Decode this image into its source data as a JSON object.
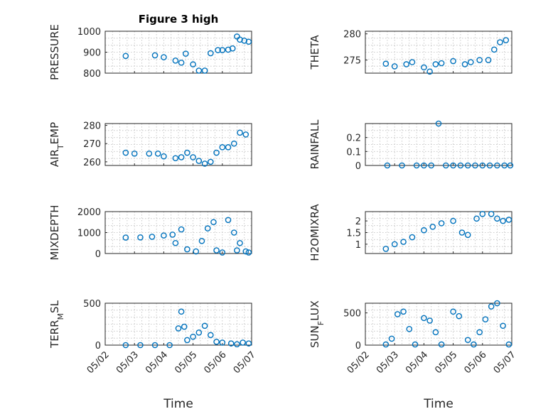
{
  "title": "Figure 3 high",
  "x_tick_labels": [
    "05/02",
    "05/03",
    "05/04",
    "05/05",
    "05/06",
    "05/07"
  ],
  "x_label": "Time",
  "chart_data": [
    {
      "type": "scatter",
      "ylabel": "PRESSURE",
      "title": "Figure 3 high",
      "xlim": [
        0,
        5
      ],
      "ylim": [
        800,
        1000
      ],
      "yticks": [
        800,
        900,
        1000
      ],
      "grid": true,
      "color": "#0072bd",
      "x": [
        0.7,
        1.7,
        2.0,
        2.4,
        2.6,
        2.75,
        3.0,
        3.2,
        3.4,
        3.6,
        3.85,
        4.0,
        4.2,
        4.35,
        4.5,
        4.6,
        4.75,
        4.9
      ],
      "y": [
        882,
        885,
        876,
        860,
        850,
        893,
        842,
        812,
        812,
        895,
        910,
        910,
        912,
        918,
        975,
        960,
        955,
        950
      ]
    },
    {
      "type": "scatter",
      "ylabel": "THETA",
      "xlim": [
        0,
        5
      ],
      "ylim": [
        272.5,
        280.5
      ],
      "yticks": [
        275,
        280
      ],
      "grid": true,
      "color": "#0072bd",
      "x": [
        0.7,
        1.0,
        1.4,
        1.6,
        2.0,
        2.2,
        2.4,
        2.6,
        3.0,
        3.4,
        3.6,
        3.9,
        4.2,
        4.4,
        4.6,
        4.8
      ],
      "y": [
        274.3,
        273.8,
        274.2,
        274.6,
        273.6,
        272.8,
        274.2,
        274.4,
        274.8,
        274.2,
        274.6,
        275.0,
        275.0,
        277.0,
        278.4,
        278.8
      ]
    },
    {
      "type": "scatter",
      "ylabel": "AIR_TEMP",
      "xlim": [
        0,
        5
      ],
      "ylim": [
        258,
        281
      ],
      "yticks": [
        260,
        270,
        280
      ],
      "grid": true,
      "color": "#0072bd",
      "x": [
        0.7,
        1.0,
        1.5,
        1.8,
        2.0,
        2.4,
        2.6,
        2.8,
        3.0,
        3.2,
        3.4,
        3.6,
        3.8,
        4.0,
        4.2,
        4.4,
        4.6,
        4.8
      ],
      "y": [
        265,
        264.5,
        264.5,
        264.5,
        263,
        262,
        262.5,
        265,
        262.5,
        260.5,
        259,
        260,
        265,
        268,
        268,
        270,
        276,
        275
      ]
    },
    {
      "type": "scatter",
      "ylabel": "RAINFALL",
      "xlim": [
        0,
        5
      ],
      "ylim": [
        0,
        0.3
      ],
      "yticks": [
        0,
        0.1,
        0.2
      ],
      "grid": true,
      "color": "#0072bd",
      "x": [
        0.75,
        1.25,
        1.75,
        2.0,
        2.25,
        2.5,
        2.75,
        3.0,
        3.25,
        3.5,
        3.75,
        4.0,
        4.25,
        4.5,
        4.75,
        4.95
      ],
      "y": [
        0,
        0,
        0,
        0,
        0,
        0.3,
        0,
        0,
        0,
        0,
        0,
        0,
        0,
        0,
        0,
        0
      ]
    },
    {
      "type": "scatter",
      "ylabel": "MIXDEPTH",
      "xlim": [
        0,
        5
      ],
      "ylim": [
        0,
        2000
      ],
      "yticks": [
        0,
        1000,
        2000
      ],
      "grid": true,
      "color": "#0072bd",
      "x": [
        0.7,
        1.2,
        1.6,
        2.0,
        2.3,
        2.4,
        2.6,
        2.8,
        3.1,
        3.3,
        3.5,
        3.7,
        3.8,
        4.0,
        4.2,
        4.4,
        4.5,
        4.6,
        4.8,
        4.9
      ],
      "y": [
        760,
        770,
        800,
        860,
        900,
        500,
        1150,
        200,
        100,
        600,
        1200,
        1500,
        150,
        50,
        1600,
        1000,
        150,
        500,
        100,
        50
      ]
    },
    {
      "type": "scatter",
      "ylabel": "H2OMIXRA",
      "xlim": [
        0,
        5
      ],
      "ylim": [
        0.6,
        2.4
      ],
      "yticks": [
        1,
        1.5,
        2
      ],
      "grid": true,
      "color": "#0072bd",
      "x": [
        0.7,
        1.0,
        1.3,
        1.6,
        2.0,
        2.3,
        2.6,
        3.0,
        3.3,
        3.5,
        3.8,
        4.0,
        4.3,
        4.5,
        4.7,
        4.9
      ],
      "y": [
        0.8,
        1.0,
        1.1,
        1.3,
        1.6,
        1.75,
        1.9,
        2.0,
        1.5,
        1.4,
        2.1,
        2.3,
        2.3,
        2.1,
        2.0,
        2.05
      ]
    },
    {
      "type": "scatter",
      "ylabel": "TERR_MSL",
      "xlim": [
        0,
        5
      ],
      "ylim": [
        0,
        500
      ],
      "yticks": [
        0,
        500
      ],
      "grid": true,
      "color": "#0072bd",
      "x": [
        0.7,
        1.2,
        1.7,
        2.2,
        2.5,
        2.6,
        2.7,
        2.8,
        3.0,
        3.2,
        3.4,
        3.6,
        3.8,
        4.0,
        4.3,
        4.5,
        4.7,
        4.9
      ],
      "y": [
        0,
        0,
        0,
        0,
        200,
        400,
        220,
        60,
        100,
        150,
        230,
        120,
        40,
        30,
        20,
        10,
        30,
        20
      ]
    },
    {
      "type": "scatter",
      "ylabel": "SUN_FLUX",
      "xlim": [
        0,
        5
      ],
      "ylim": [
        0,
        650
      ],
      "yticks": [
        0,
        500
      ],
      "grid": true,
      "color": "#0072bd",
      "x": [
        0.7,
        0.9,
        1.1,
        1.3,
        1.5,
        1.7,
        2.0,
        2.2,
        2.4,
        2.6,
        3.0,
        3.2,
        3.5,
        3.7,
        3.9,
        4.1,
        4.3,
        4.5,
        4.7,
        4.9
      ],
      "y": [
        10,
        100,
        480,
        520,
        250,
        10,
        420,
        380,
        200,
        10,
        520,
        450,
        80,
        10,
        200,
        400,
        600,
        650,
        300,
        10
      ]
    }
  ]
}
